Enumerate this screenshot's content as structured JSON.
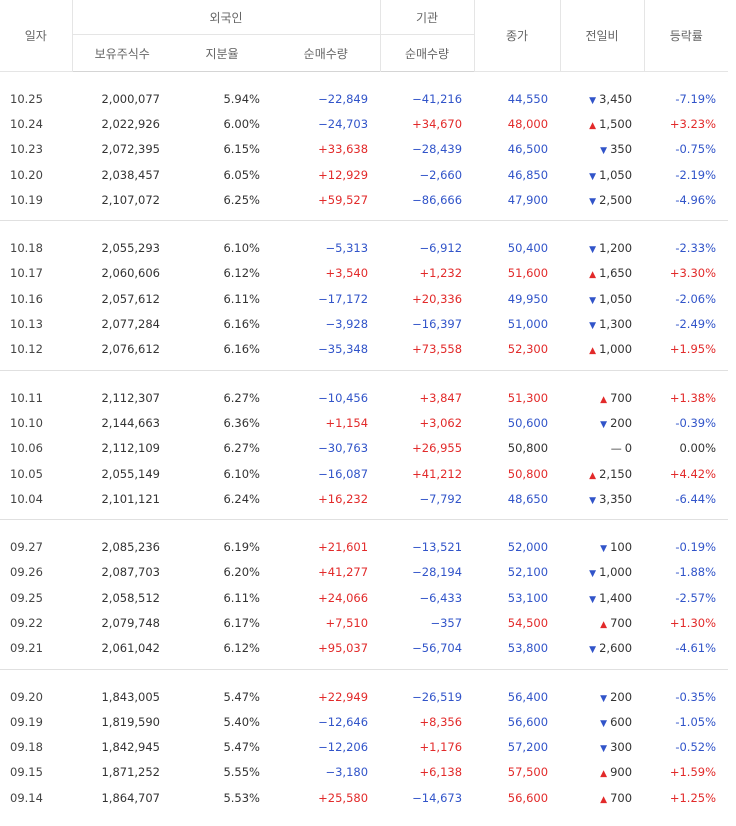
{
  "header": {
    "date": "일자",
    "foreign": "외국인",
    "institution": "기관",
    "holdings": "보유주식수",
    "ratio": "지분율",
    "foreign_net": "순매수량",
    "inst_net": "순매수량",
    "close": "종가",
    "change": "전일비",
    "rate": "등락률"
  },
  "rows": [
    {
      "date": "10.25",
      "holdings": "2,000,077",
      "ratio": "5.94%",
      "foreign_net": "−22,849",
      "inst_net": "−41,216",
      "close": "44,550",
      "dir": "down",
      "change": "3,450",
      "rate": "-7.19%"
    },
    {
      "date": "10.24",
      "holdings": "2,022,926",
      "ratio": "6.00%",
      "foreign_net": "−24,703",
      "inst_net": "+34,670",
      "close": "48,000",
      "dir": "up",
      "change": "1,500",
      "rate": "+3.23%"
    },
    {
      "date": "10.23",
      "holdings": "2,072,395",
      "ratio": "6.15%",
      "foreign_net": "+33,638",
      "inst_net": "−28,439",
      "close": "46,500",
      "dir": "down",
      "change": "350",
      "rate": "-0.75%"
    },
    {
      "date": "10.20",
      "holdings": "2,038,457",
      "ratio": "6.05%",
      "foreign_net": "+12,929",
      "inst_net": "−2,660",
      "close": "46,850",
      "dir": "down",
      "change": "1,050",
      "rate": "-2.19%"
    },
    {
      "date": "10.19",
      "holdings": "2,107,072",
      "ratio": "6.25%",
      "foreign_net": "+59,527",
      "inst_net": "−86,666",
      "close": "47,900",
      "dir": "down",
      "change": "2,500",
      "rate": "-4.96%"
    },
    {
      "date": "10.18",
      "holdings": "2,055,293",
      "ratio": "6.10%",
      "foreign_net": "−5,313",
      "inst_net": "−6,912",
      "close": "50,400",
      "dir": "down",
      "change": "1,200",
      "rate": "-2.33%"
    },
    {
      "date": "10.17",
      "holdings": "2,060,606",
      "ratio": "6.12%",
      "foreign_net": "+3,540",
      "inst_net": "+1,232",
      "close": "51,600",
      "dir": "up",
      "change": "1,650",
      "rate": "+3.30%"
    },
    {
      "date": "10.16",
      "holdings": "2,057,612",
      "ratio": "6.11%",
      "foreign_net": "−17,172",
      "inst_net": "+20,336",
      "close": "49,950",
      "dir": "down",
      "change": "1,050",
      "rate": "-2.06%"
    },
    {
      "date": "10.13",
      "holdings": "2,077,284",
      "ratio": "6.16%",
      "foreign_net": "−3,928",
      "inst_net": "−16,397",
      "close": "51,000",
      "dir": "down",
      "change": "1,300",
      "rate": "-2.49%"
    },
    {
      "date": "10.12",
      "holdings": "2,076,612",
      "ratio": "6.16%",
      "foreign_net": "−35,348",
      "inst_net": "+73,558",
      "close": "52,300",
      "dir": "up",
      "change": "1,000",
      "rate": "+1.95%"
    },
    {
      "date": "10.11",
      "holdings": "2,112,307",
      "ratio": "6.27%",
      "foreign_net": "−10,456",
      "inst_net": "+3,847",
      "close": "51,300",
      "dir": "up",
      "change": "700",
      "rate": "+1.38%"
    },
    {
      "date": "10.10",
      "holdings": "2,144,663",
      "ratio": "6.36%",
      "foreign_net": "+1,154",
      "inst_net": "+3,062",
      "close": "50,600",
      "dir": "down",
      "change": "200",
      "rate": "-0.39%"
    },
    {
      "date": "10.06",
      "holdings": "2,112,109",
      "ratio": "6.27%",
      "foreign_net": "−30,763",
      "inst_net": "+26,955",
      "close": "50,800",
      "dir": "flat",
      "change": "0",
      "rate": "0.00%"
    },
    {
      "date": "10.05",
      "holdings": "2,055,149",
      "ratio": "6.10%",
      "foreign_net": "−16,087",
      "inst_net": "+41,212",
      "close": "50,800",
      "dir": "up",
      "change": "2,150",
      "rate": "+4.42%"
    },
    {
      "date": "10.04",
      "holdings": "2,101,121",
      "ratio": "6.24%",
      "foreign_net": "+16,232",
      "inst_net": "−7,792",
      "close": "48,650",
      "dir": "down",
      "change": "3,350",
      "rate": "-6.44%"
    },
    {
      "date": "09.27",
      "holdings": "2,085,236",
      "ratio": "6.19%",
      "foreign_net": "+21,601",
      "inst_net": "−13,521",
      "close": "52,000",
      "dir": "down",
      "change": "100",
      "rate": "-0.19%"
    },
    {
      "date": "09.26",
      "holdings": "2,087,703",
      "ratio": "6.20%",
      "foreign_net": "+41,277",
      "inst_net": "−28,194",
      "close": "52,100",
      "dir": "down",
      "change": "1,000",
      "rate": "-1.88%"
    },
    {
      "date": "09.25",
      "holdings": "2,058,512",
      "ratio": "6.11%",
      "foreign_net": "+24,066",
      "inst_net": "−6,433",
      "close": "53,100",
      "dir": "down",
      "change": "1,400",
      "rate": "-2.57%"
    },
    {
      "date": "09.22",
      "holdings": "2,079,748",
      "ratio": "6.17%",
      "foreign_net": "+7,510",
      "inst_net": "−357",
      "close": "54,500",
      "dir": "up",
      "change": "700",
      "rate": "+1.30%"
    },
    {
      "date": "09.21",
      "holdings": "2,061,042",
      "ratio": "6.12%",
      "foreign_net": "+95,037",
      "inst_net": "−56,704",
      "close": "53,800",
      "dir": "down",
      "change": "2,600",
      "rate": "-4.61%"
    },
    {
      "date": "09.20",
      "holdings": "1,843,005",
      "ratio": "5.47%",
      "foreign_net": "+22,949",
      "inst_net": "−26,519",
      "close": "56,400",
      "dir": "down",
      "change": "200",
      "rate": "-0.35%"
    },
    {
      "date": "09.19",
      "holdings": "1,819,590",
      "ratio": "5.40%",
      "foreign_net": "−12,646",
      "inst_net": "+8,356",
      "close": "56,600",
      "dir": "down",
      "change": "600",
      "rate": "-1.05%"
    },
    {
      "date": "09.18",
      "holdings": "1,842,945",
      "ratio": "5.47%",
      "foreign_net": "−12,206",
      "inst_net": "+1,176",
      "close": "57,200",
      "dir": "down",
      "change": "300",
      "rate": "-0.52%"
    },
    {
      "date": "09.15",
      "holdings": "1,871,252",
      "ratio": "5.55%",
      "foreign_net": "−3,180",
      "inst_net": "+6,138",
      "close": "57,500",
      "dir": "up",
      "change": "900",
      "rate": "+1.59%"
    },
    {
      "date": "09.14",
      "holdings": "1,864,707",
      "ratio": "5.53%",
      "foreign_net": "+25,580",
      "inst_net": "−14,673",
      "close": "56,600",
      "dir": "up",
      "change": "700",
      "rate": "+1.25%"
    }
  ],
  "colors": {
    "up": "#e22a2a",
    "down": "#3154c9"
  },
  "icons": {
    "up": "triangle-up-icon",
    "down": "triangle-down-icon",
    "flat": "dash-icon"
  }
}
